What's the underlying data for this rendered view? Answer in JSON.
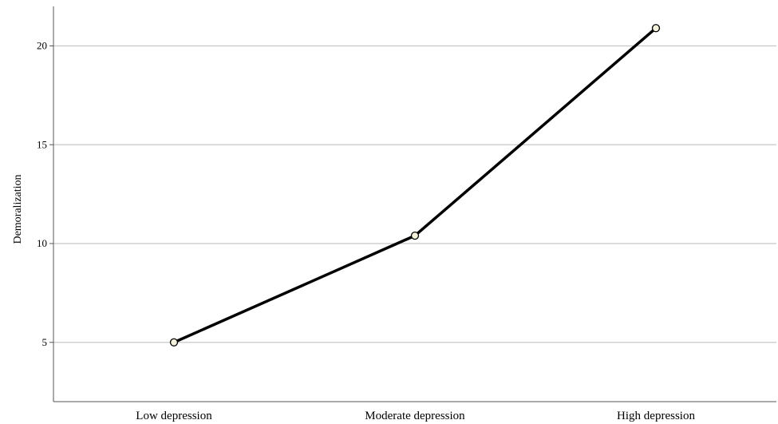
{
  "chart_data": {
    "type": "line",
    "categories": [
      "Low depression",
      "Moderate depression",
      "High depression"
    ],
    "series": [
      {
        "values": [
          5.0,
          10.4,
          20.9
        ]
      }
    ],
    "xlabel": "",
    "ylabel": "Demoralization",
    "ylim": [
      2,
      22
    ],
    "yticks": [
      5,
      10,
      15,
      20
    ],
    "grid": "horizontal",
    "legend": "none",
    "colors": {
      "line": "#000000",
      "marker_fill": "#f3f0dc",
      "grid": "#c8c8c8",
      "axis": "#555555"
    }
  }
}
